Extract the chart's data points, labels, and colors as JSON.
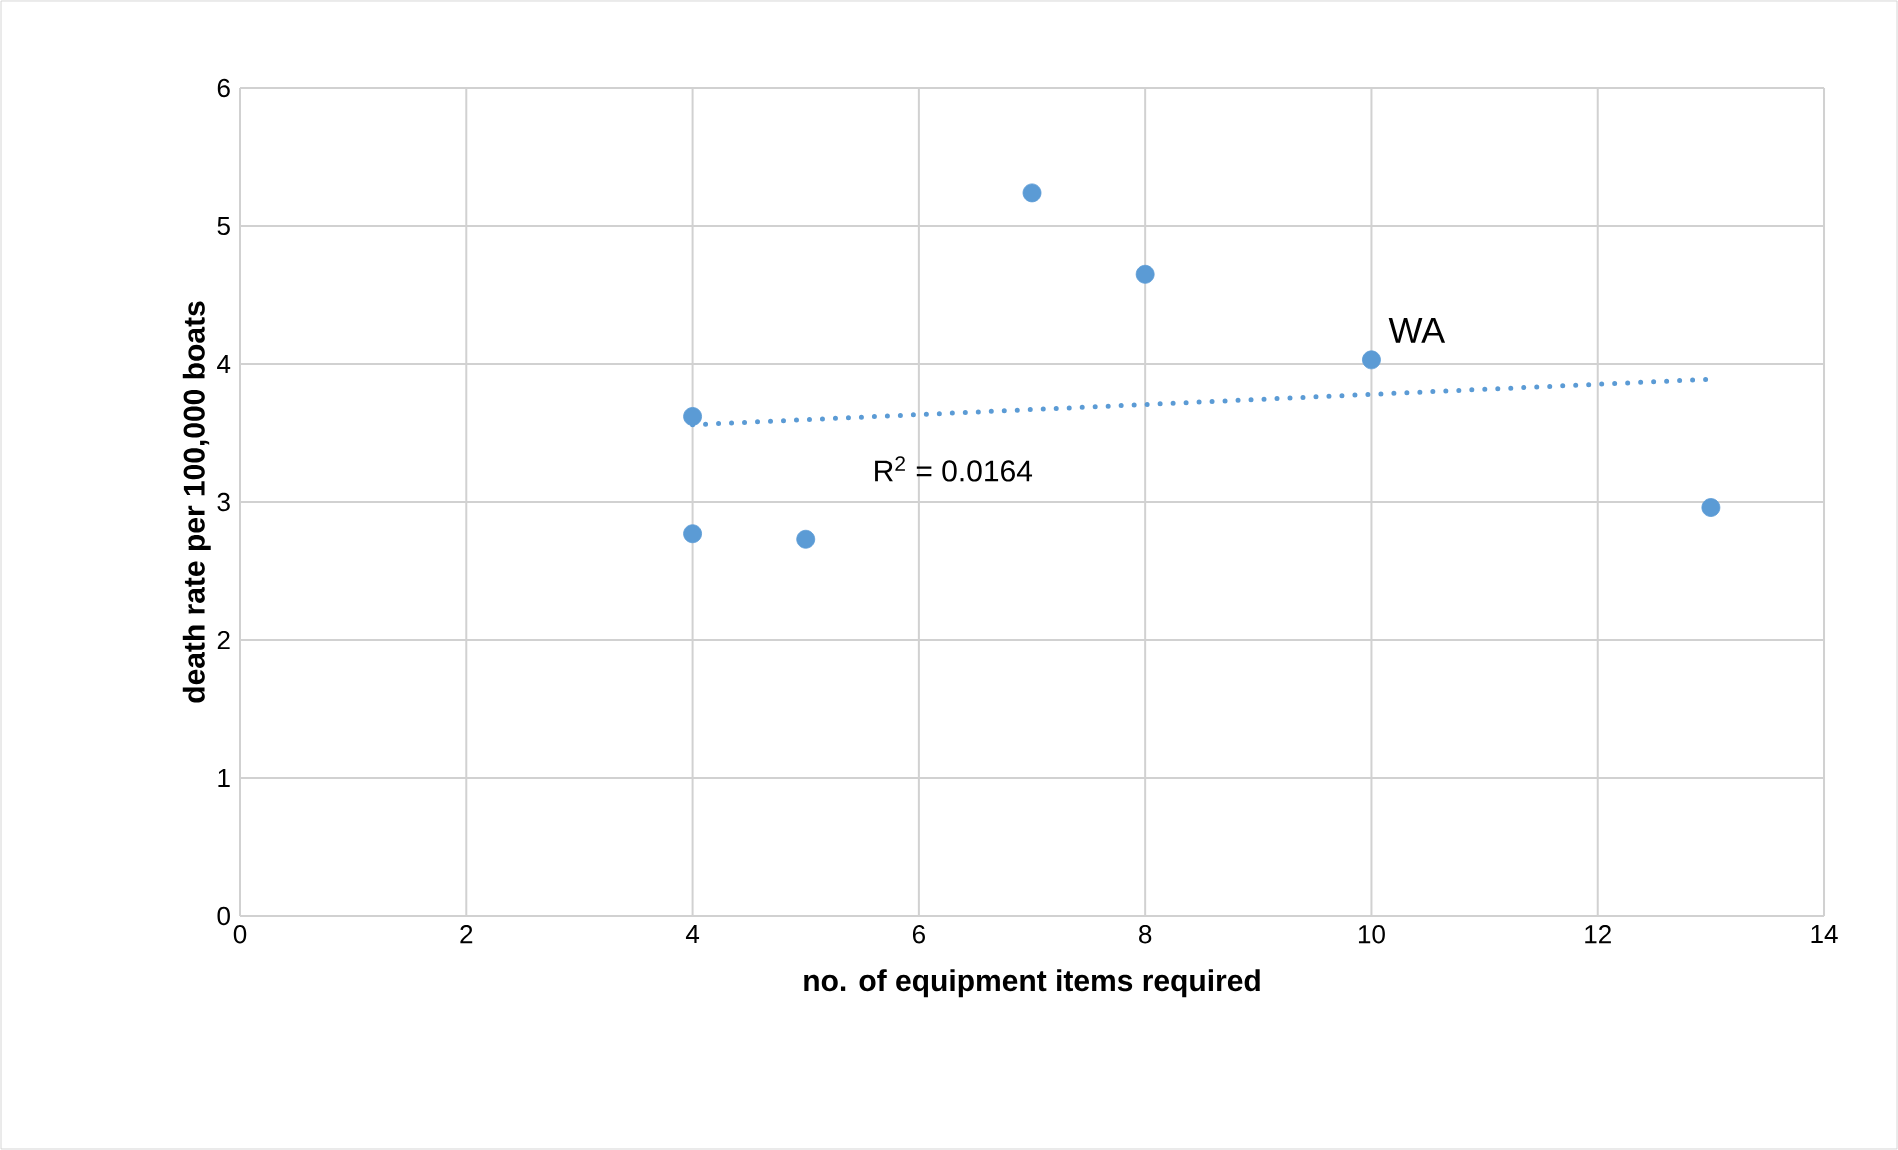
{
  "chart_data": {
    "type": "scatter",
    "xlabel": "no. of equipment  items  required",
    "ylabel": "death rate per 100,000 boats",
    "xlim": [
      0,
      14
    ],
    "xticks": [
      0,
      2,
      4,
      6,
      8,
      10,
      12,
      14
    ],
    "ylim": [
      0,
      6
    ],
    "yticks": [
      0,
      1,
      2,
      3,
      4,
      5,
      6
    ],
    "grid": true,
    "series": [
      {
        "color": "#5b9bd5",
        "marker": "circle",
        "x": [
          4,
          4,
          5,
          7,
          8,
          10,
          13
        ],
        "values": [
          3.62,
          2.77,
          2.73,
          5.24,
          4.65,
          4.03,
          2.96
        ]
      },
      {
        "type": "line",
        "color": "#5b9bd5",
        "line_style": "dotted",
        "marker": "none",
        "x": [
          4,
          13
        ],
        "values": [
          3.56,
          3.89
        ]
      }
    ],
    "annotations": [
      {
        "text": "WA",
        "x": 10,
        "y": 4.03
      },
      "R$^{2}$ = 0.0164"
    ]
  }
}
